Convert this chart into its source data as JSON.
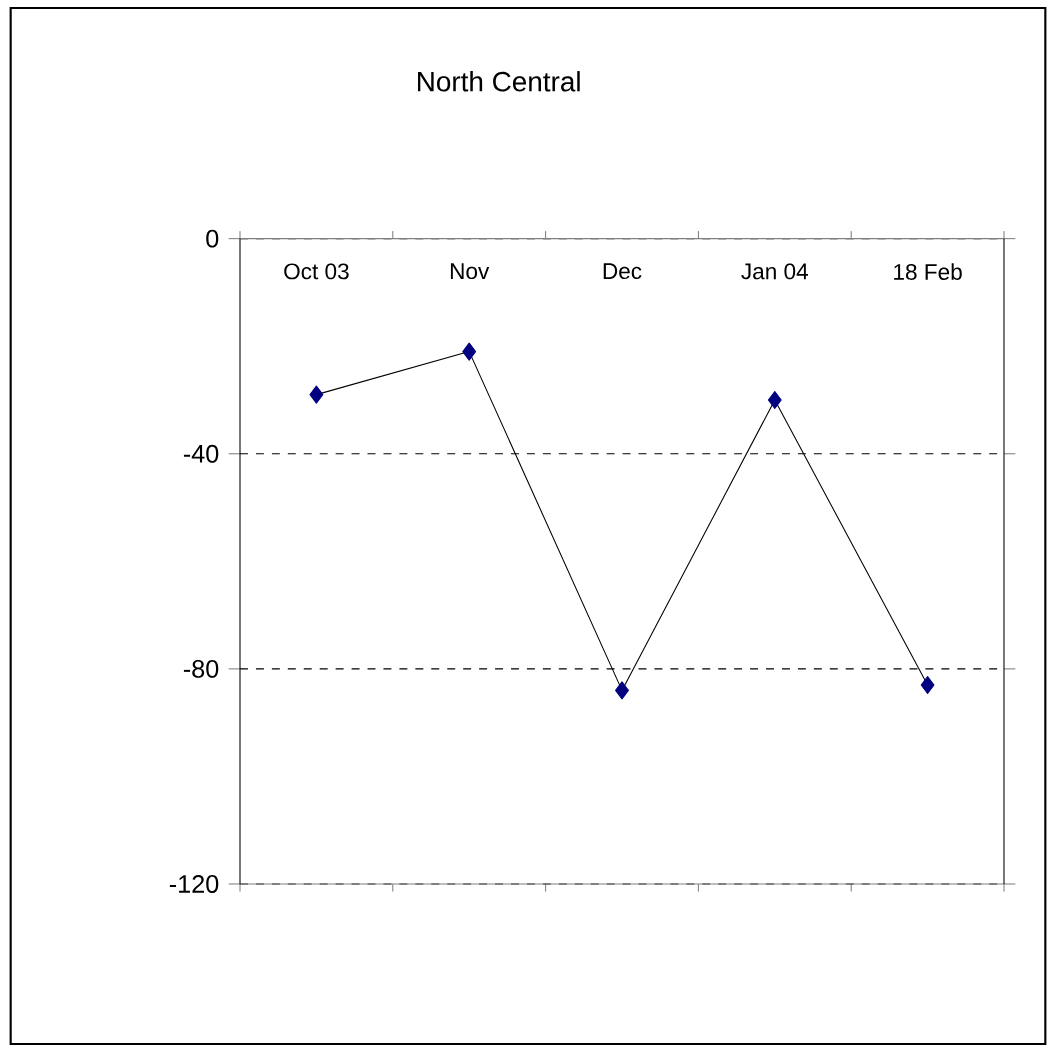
{
  "chart_data": {
    "type": "line",
    "title": "North Central",
    "categories": [
      "Oct 03",
      "Nov",
      "Dec",
      "Jan 04",
      "18 Feb"
    ],
    "series": [
      {
        "color": "#000080",
        "values": [
          -29,
          -21,
          -84,
          -30,
          -83
        ]
      }
    ],
    "ylim": [
      -120,
      0
    ],
    "yticks": [
      0,
      -40,
      -80,
      -120
    ],
    "grid": "y",
    "marker": "diamond",
    "line_style": "solid"
  }
}
